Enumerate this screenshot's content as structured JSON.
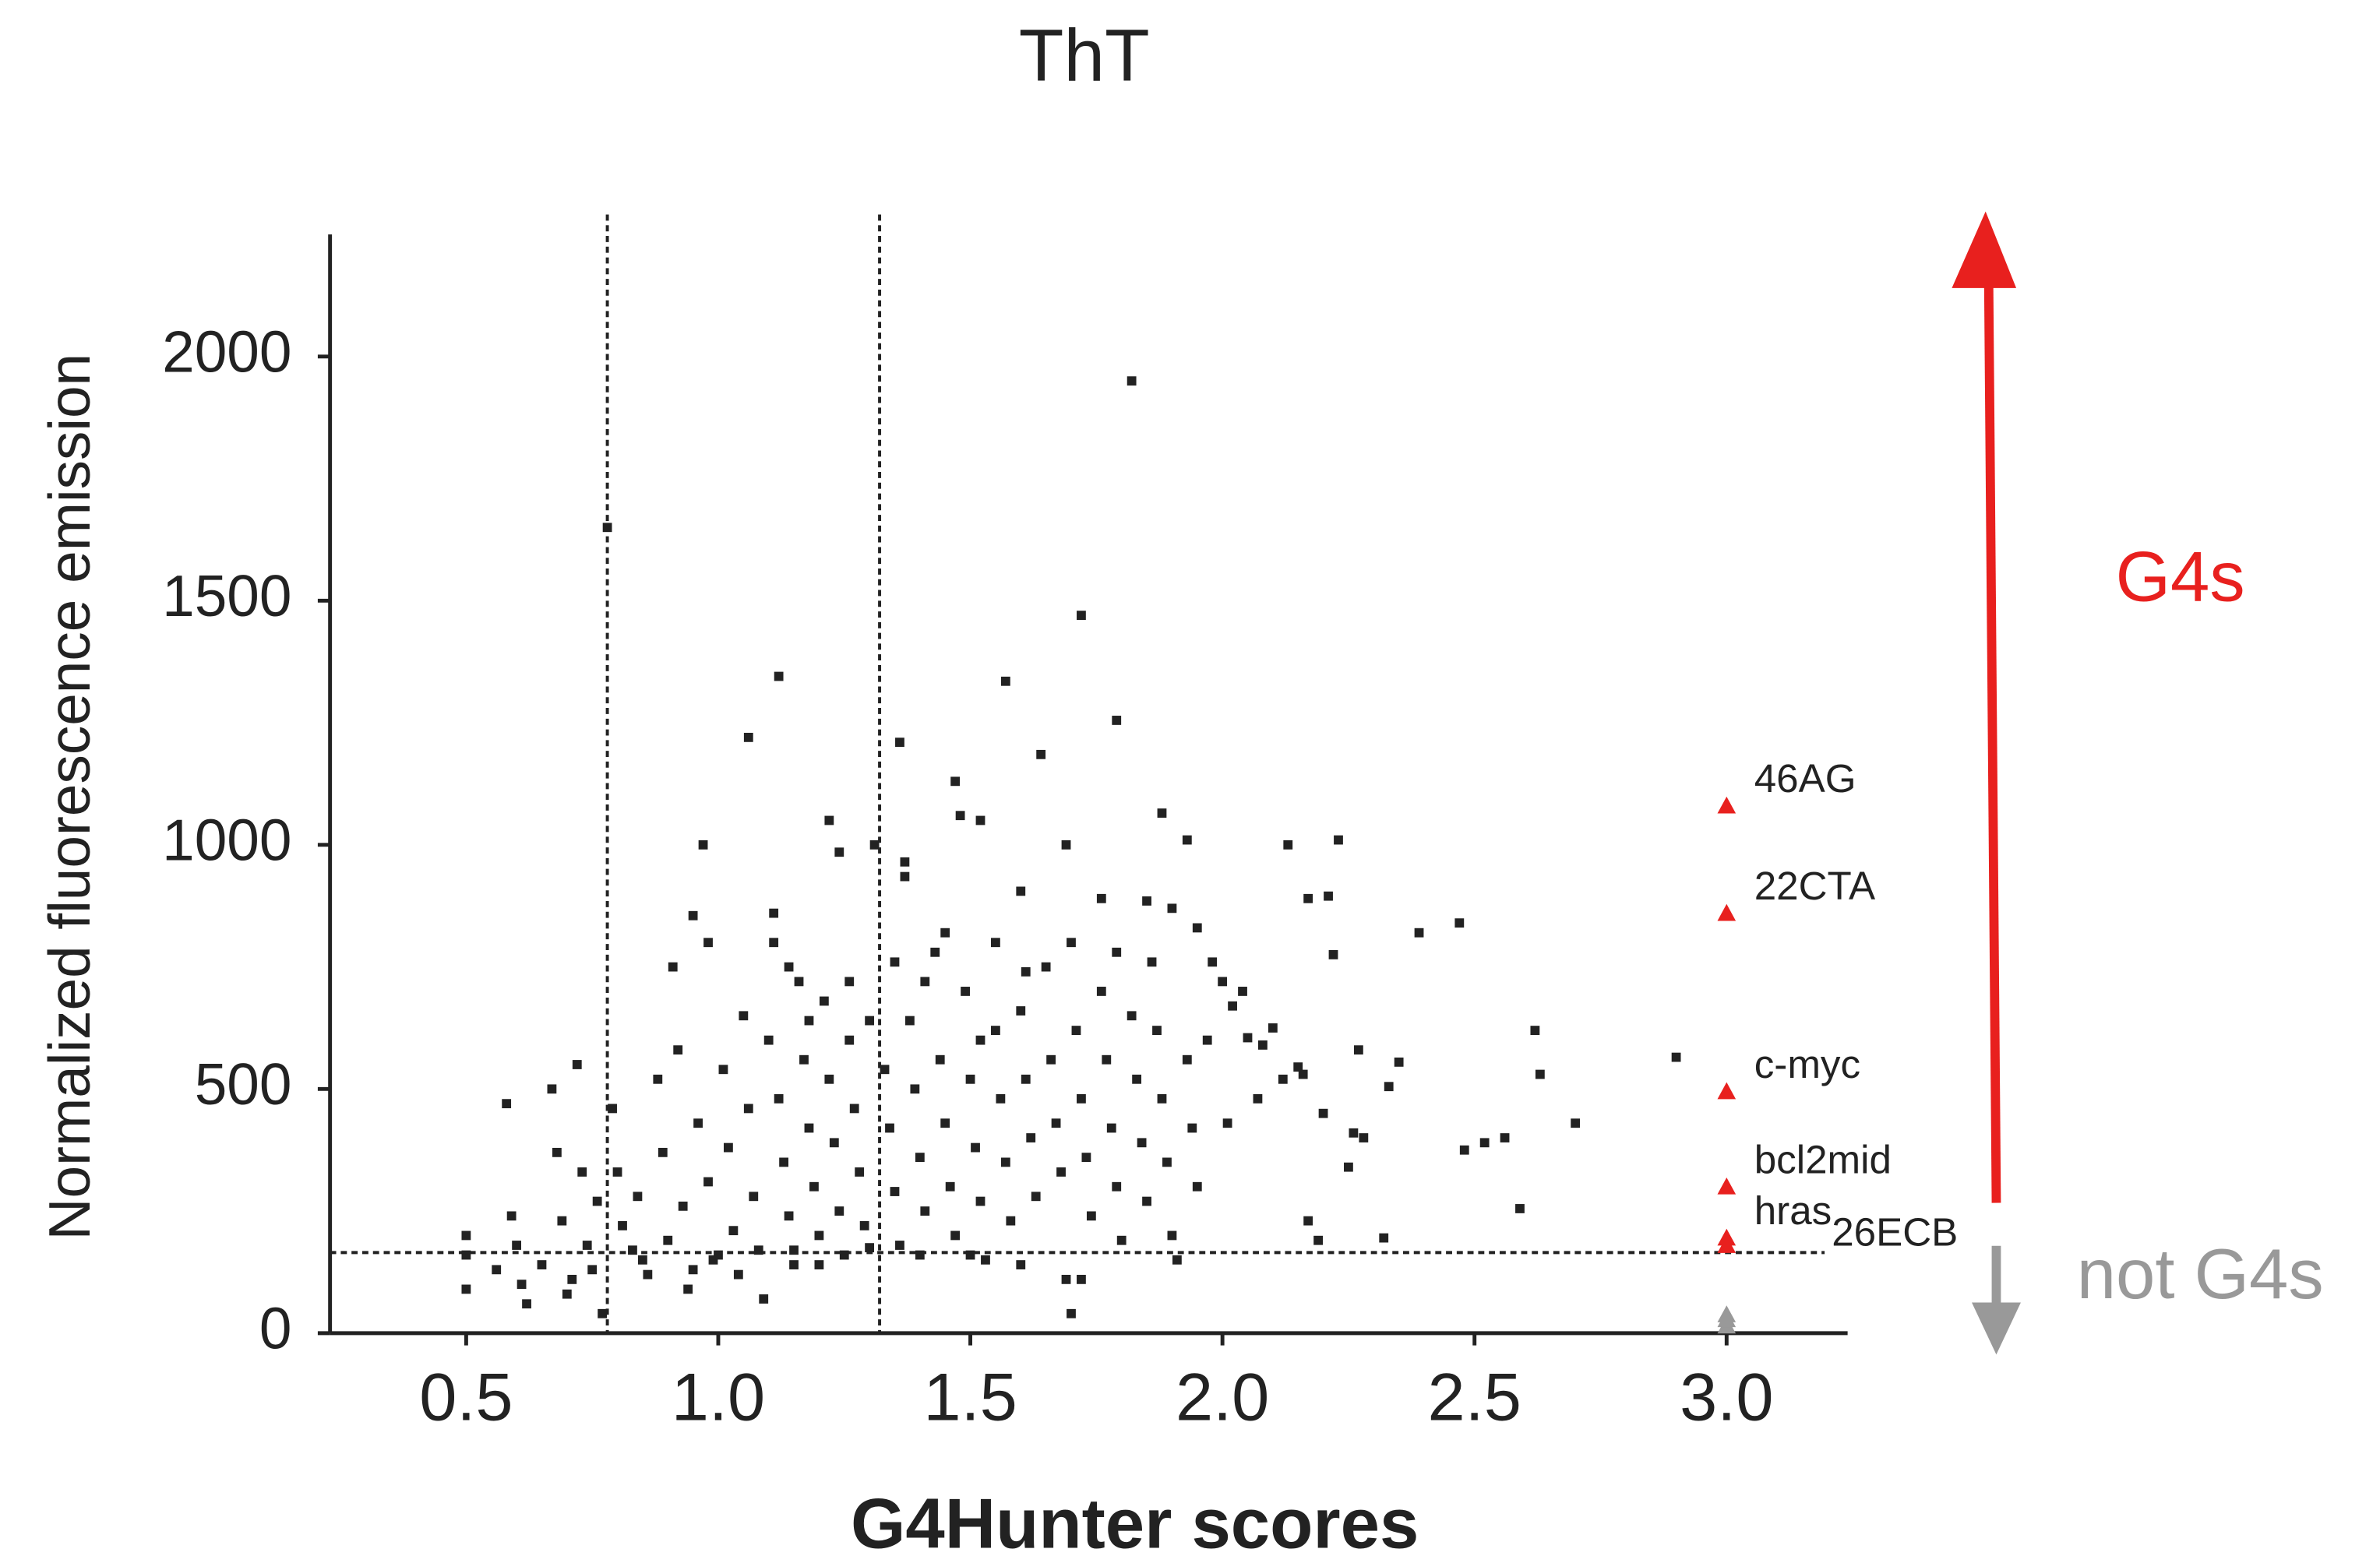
{
  "chart_data": {
    "type": "scatter",
    "title": "ThT",
    "xlabel": "G4Hunter scores",
    "ylabel": "Normalized fluorescence emission",
    "xlim": [
      0.23,
      3.24
    ],
    "ylim": [
      0,
      2250
    ],
    "xticks": [
      0.5,
      {
        "value": 1,
        "label": "1.0"
      },
      1.5,
      {
        "value": 2,
        "label": "2.0"
      },
      2.5,
      {
        "value": 3,
        "label": "3.0"
      }
    ],
    "yticks": [
      0,
      500,
      1000,
      1500,
      2000
    ],
    "vlines": [
      0.78,
      1.32
    ],
    "hline": 165,
    "series": [
      {
        "color": "#222222",
        "marker": "square",
        "x": [
          0.78,
          1.82,
          1.72,
          1.12,
          1.57,
          1.06,
          1.79,
          1.36,
          1.64,
          1.47,
          0.97,
          1.22,
          1.31,
          1.24,
          1.52,
          1.48,
          1.69,
          1.88,
          1.93,
          2.13,
          2.23,
          2.21,
          2.17,
          2.39,
          2.47,
          2.22,
          1.6,
          1.76,
          1.85,
          1.9,
          1.95,
          1.37,
          1.37,
          0.95,
          0.98,
          0.91,
          1.11,
          1.11,
          1.14,
          1.16,
          2.62,
          2.63,
          2.9,
          2.7,
          2.59,
          2.52,
          2.48,
          2.56,
          2.27,
          2.33,
          2.35,
          2.15,
          2.16,
          2.26,
          2.2,
          2.1,
          2.12,
          2.07,
          2.02,
          2.05,
          2.08,
          1.98,
          2.0,
          2.04,
          1.97,
          2.01,
          2.17,
          2.19,
          2.28,
          2.32,
          2.25,
          0.5,
          0.5,
          0.5,
          0.56,
          0.58,
          0.59,
          0.6,
          0.61,
          0.62,
          0.65,
          0.67,
          0.68,
          0.69,
          0.7,
          0.71,
          0.72,
          0.73,
          0.74,
          0.75,
          0.76,
          0.77,
          0.79,
          0.8,
          0.81,
          0.83,
          0.84,
          0.86,
          0.88,
          0.89,
          0.9,
          0.92,
          0.93,
          0.94,
          0.96,
          0.98,
          0.99,
          1.01,
          1.02,
          1.03,
          1.04,
          1.05,
          1.06,
          1.07,
          1.08,
          1.09,
          1.1,
          1.12,
          1.13,
          1.14,
          1.15,
          1.17,
          1.18,
          1.19,
          1.2,
          1.21,
          1.22,
          1.23,
          1.24,
          1.25,
          1.26,
          1.27,
          1.28,
          1.29,
          1.3,
          1.33,
          1.34,
          1.35,
          1.36,
          1.38,
          1.39,
          1.4,
          1.41,
          1.43,
          1.44,
          1.45,
          1.46,
          1.47,
          1.49,
          1.5,
          1.51,
          1.52,
          1.53,
          1.55,
          1.56,
          1.57,
          1.58,
          1.6,
          1.61,
          1.62,
          1.63,
          1.65,
          1.66,
          1.67,
          1.68,
          1.69,
          1.7,
          1.71,
          1.72,
          1.73,
          1.74,
          1.76,
          1.77,
          1.78,
          1.79,
          1.8,
          1.82,
          1.83,
          1.84,
          1.85,
          1.87,
          1.88,
          1.89,
          1.9,
          1.91,
          1.93,
          1.94,
          1.95,
          1.72,
          1.6,
          1.4,
          1.2,
          1.0,
          0.85,
          0.95,
          1.15,
          1.3,
          1.5,
          1.35,
          1.41,
          1.26,
          1.18,
          1.52,
          1.61,
          1.79,
          1.7,
          1.86,
          1.55,
          1.45
        ],
        "values": [
          1650,
          1950,
          1470,
          1345,
          1335,
          1220,
          1255,
          1210,
          1185,
          1130,
          1000,
          1050,
          1000,
          985,
          1050,
          1060,
          1000,
          1065,
          1010,
          1000,
          1010,
          895,
          890,
          820,
          840,
          775,
          905,
          890,
          885,
          870,
          830,
          965,
          935,
          855,
          800,
          750,
          860,
          800,
          750,
          720,
          620,
          530,
          565,
          430,
          255,
          390,
          375,
          400,
          580,
          505,
          555,
          545,
          530,
          410,
          450,
          625,
          520,
          480,
          670,
          605,
          590,
          760,
          720,
          700,
          600,
          430,
          230,
          190,
          400,
          195,
          340,
          200,
          160,
          90,
          130,
          470,
          240,
          180,
          100,
          60,
          140,
          500,
          370,
          230,
          80,
          110,
          550,
          330,
          180,
          130,
          270,
          40,
          460,
          330,
          220,
          170,
          280,
          120,
          520,
          370,
          190,
          580,
          260,
          90,
          430,
          310,
          150,
          540,
          380,
          210,
          120,
          650,
          460,
          280,
          170,
          70,
          600,
          480,
          350,
          240,
          140,
          560,
          420,
          300,
          200,
          680,
          520,
          390,
          250,
          160,
          600,
          460,
          330,
          220,
          640,
          540,
          420,
          290,
          180,
          640,
          500,
          360,
          250,
          780,
          560,
          430,
          300,
          200,
          700,
          520,
          380,
          270,
          150,
          620,
          480,
          350,
          230,
          660,
          520,
          400,
          280,
          750,
          560,
          430,
          330,
          110,
          40,
          620,
          480,
          360,
          240,
          700,
          560,
          420,
          300,
          190,
          650,
          520,
          390,
          270,
          620,
          480,
          350,
          200,
          150,
          560,
          420,
          300,
          110,
          140,
          160,
          140,
          160,
          150,
          130,
          170,
          175,
          160,
          760,
          720,
          720,
          640,
          600,
          740,
          780,
          800,
          760,
          800,
          820
        ]
      },
      {
        "color": "#e8201e",
        "marker": "triangle",
        "x": [
          3.0,
          3.0,
          3.0,
          3.0,
          3.0,
          3.0
        ],
        "values": [
          1080,
          860,
          495,
          300,
          195,
          180
        ],
        "point_labels": [
          "46AG",
          "22CTA",
          "c-myc",
          "bcl2mid",
          "hras",
          null
        ],
        "label_subscripts": [
          null,
          null,
          null,
          null,
          "26ECB",
          null
        ]
      },
      {
        "color": "#999999",
        "marker": "triangle",
        "x": [
          3.0,
          3.0,
          3.0
        ],
        "values": [
          15,
          28,
          38
        ]
      }
    ],
    "annotations": {
      "up": "G4s",
      "up_color": "#e8201e",
      "down": "not G4s",
      "down_color": "#999999"
    }
  }
}
